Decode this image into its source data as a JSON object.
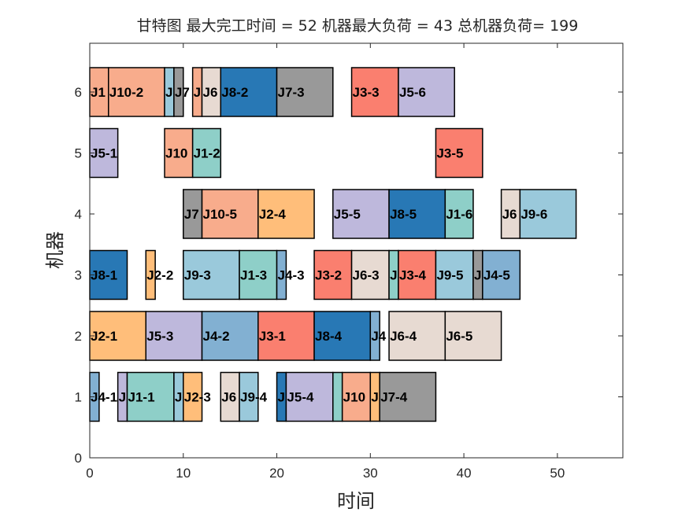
{
  "chart_data": {
    "type": "gantt",
    "title": "甘特图 最大完工时间 = 52 机器最大负荷 = 43 总机器负荷= 199",
    "xlabel": "时间",
    "ylabel": "机器",
    "xlim": [
      0,
      57
    ],
    "ylim": [
      0,
      6.8
    ],
    "xticks": [
      "0",
      "10",
      "20",
      "30",
      "40",
      "50"
    ],
    "yticks": [
      "0",
      "1",
      "2",
      "3",
      "4",
      "5",
      "6"
    ],
    "grid": false,
    "job_colors": {
      "J1": "#8ecfc8",
      "J2": "#ffbe7a",
      "J3": "#fa7f6f",
      "J4": "#82b0d2",
      "J5": "#beb8dc",
      "J6": "#e7dad2",
      "J7": "#999999",
      "J8": "#2878b5",
      "J9": "#9ac9db",
      "J10": "#f8ac8c"
    },
    "tasks": [
      {
        "machine": 1,
        "job": "J4",
        "label": "J4-1",
        "start": 0,
        "end": 1
      },
      {
        "machine": 1,
        "job": "J5",
        "label": "J",
        "start": 3,
        "end": 4
      },
      {
        "machine": 1,
        "job": "J1",
        "label": "J1-1",
        "start": 4,
        "end": 9
      },
      {
        "machine": 1,
        "job": "J9",
        "label": "J",
        "start": 9,
        "end": 10
      },
      {
        "machine": 1,
        "job": "J2",
        "label": "J2-3",
        "start": 10,
        "end": 12
      },
      {
        "machine": 1,
        "job": "J6",
        "label": "J6",
        "start": 14,
        "end": 16
      },
      {
        "machine": 1,
        "job": "J9",
        "label": "J9-4",
        "start": 16,
        "end": 18
      },
      {
        "machine": 1,
        "job": "J8",
        "label": "J",
        "start": 20,
        "end": 21
      },
      {
        "machine": 1,
        "job": "J5",
        "label": "J5-4",
        "start": 21,
        "end": 26
      },
      {
        "machine": 1,
        "job": "J1",
        "label": "",
        "start": 26,
        "end": 27
      },
      {
        "machine": 1,
        "job": "J10",
        "label": "J10",
        "start": 27,
        "end": 30
      },
      {
        "machine": 1,
        "job": "J2",
        "label": "J",
        "start": 30,
        "end": 31
      },
      {
        "machine": 1,
        "job": "J7",
        "label": "J7-4",
        "start": 31,
        "end": 37
      },
      {
        "machine": 2,
        "job": "J2",
        "label": "J2-1",
        "start": 0,
        "end": 6
      },
      {
        "machine": 2,
        "job": "J5",
        "label": "J5-3",
        "start": 6,
        "end": 12
      },
      {
        "machine": 2,
        "job": "J4",
        "label": "J4-2",
        "start": 12,
        "end": 18
      },
      {
        "machine": 2,
        "job": "J3",
        "label": "J3-1",
        "start": 18,
        "end": 24
      },
      {
        "machine": 2,
        "job": "J8",
        "label": "J8-4",
        "start": 24,
        "end": 30
      },
      {
        "machine": 2,
        "job": "J4",
        "label": "J4",
        "start": 30,
        "end": 31
      },
      {
        "machine": 2,
        "job": "J6",
        "label": "J6-4",
        "start": 32,
        "end": 38
      },
      {
        "machine": 2,
        "job": "J6",
        "label": "J6-5",
        "start": 38,
        "end": 44
      },
      {
        "machine": 3,
        "job": "J8",
        "label": "J8-1",
        "start": 0,
        "end": 4
      },
      {
        "machine": 3,
        "job": "J2",
        "label": "J2-2",
        "start": 6,
        "end": 7
      },
      {
        "machine": 3,
        "job": "J9",
        "label": "J9-3",
        "start": 10,
        "end": 16
      },
      {
        "machine": 3,
        "job": "J1",
        "label": "J1-3",
        "start": 16,
        "end": 20
      },
      {
        "machine": 3,
        "job": "J4",
        "label": "J4-3",
        "start": 20,
        "end": 21
      },
      {
        "machine": 3,
        "job": "J3",
        "label": "J3-2",
        "start": 24,
        "end": 28
      },
      {
        "machine": 3,
        "job": "J6",
        "label": "J6-3",
        "start": 28,
        "end": 32
      },
      {
        "machine": 3,
        "job": "J1",
        "label": "J",
        "start": 32,
        "end": 33
      },
      {
        "machine": 3,
        "job": "J3",
        "label": "J3-4",
        "start": 33,
        "end": 37
      },
      {
        "machine": 3,
        "job": "J9",
        "label": "J9-5",
        "start": 37,
        "end": 41
      },
      {
        "machine": 3,
        "job": "J7",
        "label": "J",
        "start": 41,
        "end": 42
      },
      {
        "machine": 3,
        "job": "J4",
        "label": "J4-5",
        "start": 42,
        "end": 46
      },
      {
        "machine": 4,
        "job": "J7",
        "label": "J7",
        "start": 10,
        "end": 12
      },
      {
        "machine": 4,
        "job": "J10",
        "label": "J10-5",
        "start": 12,
        "end": 18
      },
      {
        "machine": 4,
        "job": "J2",
        "label": "J2-4",
        "start": 18,
        "end": 24
      },
      {
        "machine": 4,
        "job": "J5",
        "label": "J5-5",
        "start": 26,
        "end": 32
      },
      {
        "machine": 4,
        "job": "J8",
        "label": "J8-5",
        "start": 32,
        "end": 38
      },
      {
        "machine": 4,
        "job": "J1",
        "label": "J1-6",
        "start": 38,
        "end": 41
      },
      {
        "machine": 4,
        "job": "J6",
        "label": "J6",
        "start": 44,
        "end": 46
      },
      {
        "machine": 4,
        "job": "J9",
        "label": "J9-6",
        "start": 46,
        "end": 52
      },
      {
        "machine": 5,
        "job": "J5",
        "label": "J5-1",
        "start": 0,
        "end": 3
      },
      {
        "machine": 5,
        "job": "J10",
        "label": "J10",
        "start": 8,
        "end": 11
      },
      {
        "machine": 5,
        "job": "J1",
        "label": "J1-2",
        "start": 11,
        "end": 14
      },
      {
        "machine": 5,
        "job": "J3",
        "label": "J3-5",
        "start": 37,
        "end": 42
      },
      {
        "machine": 6,
        "job": "J10",
        "label": "J1",
        "start": 0,
        "end": 2
      },
      {
        "machine": 6,
        "job": "J10",
        "label": "J10-2",
        "start": 2,
        "end": 8
      },
      {
        "machine": 6,
        "job": "J9",
        "label": "J",
        "start": 8,
        "end": 9
      },
      {
        "machine": 6,
        "job": "J7",
        "label": "J7",
        "start": 9,
        "end": 10
      },
      {
        "machine": 6,
        "job": "J10",
        "label": "J",
        "start": 11,
        "end": 12
      },
      {
        "machine": 6,
        "job": "J6",
        "label": "J6",
        "start": 12,
        "end": 14
      },
      {
        "machine": 6,
        "job": "J8",
        "label": "J8-2",
        "start": 14,
        "end": 20
      },
      {
        "machine": 6,
        "job": "J7",
        "label": "J7-3",
        "start": 20,
        "end": 26
      },
      {
        "machine": 6,
        "job": "J3",
        "label": "J3-3",
        "start": 28,
        "end": 33
      },
      {
        "machine": 6,
        "job": "J5",
        "label": "J5-6",
        "start": 33,
        "end": 39
      }
    ]
  }
}
